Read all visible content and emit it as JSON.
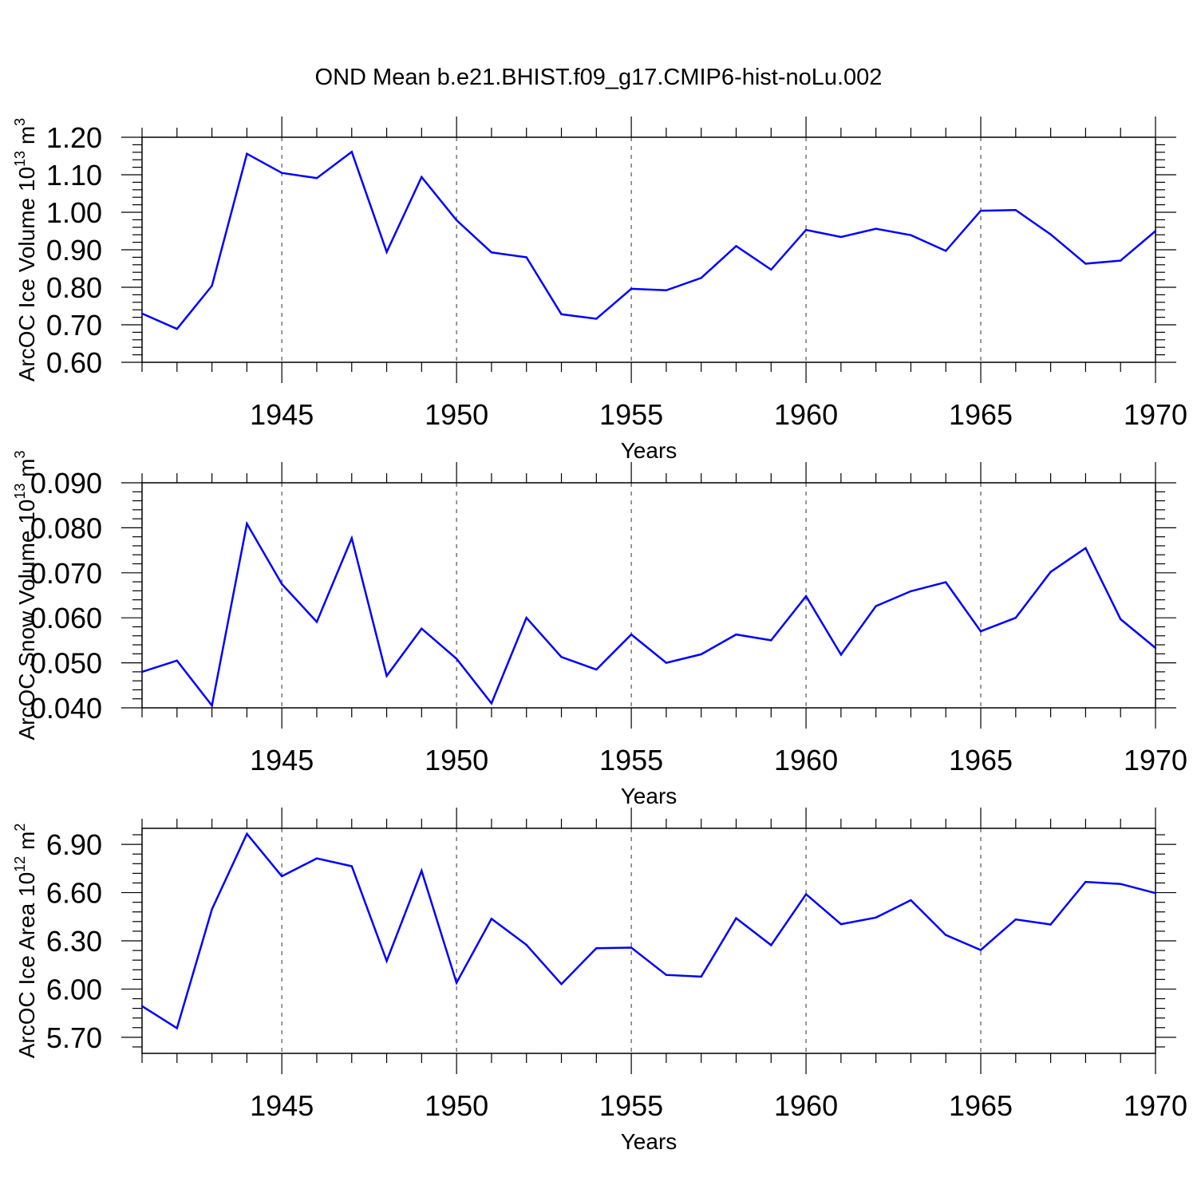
{
  "title": "OND Mean b.e21.BHIST.f09_g17.CMIP6-hist-noLu.002",
  "colors": {
    "series": "#0000ff",
    "axis": "#000000",
    "grid": "#555555"
  },
  "chart_data": [
    {
      "type": "line",
      "xlabel": "Years",
      "ylabel": {
        "text": "ArcOC Ice Volume 10",
        "sup_exp": "13",
        "unit": " m",
        "sup_unit": "3"
      },
      "xlim": [
        1941,
        1970
      ],
      "ylim": [
        0.6,
        1.2
      ],
      "x_ticks": [
        "1945",
        "1950",
        "1955",
        "1960",
        "1965",
        "1970"
      ],
      "y_ticks": [
        "0.60",
        "0.70",
        "0.80",
        "0.90",
        "1.00",
        "1.10",
        "1.20"
      ],
      "grid": "vertical dashed at major x ticks",
      "x": [
        1941,
        1942,
        1943,
        1944,
        1945,
        1946,
        1947,
        1948,
        1949,
        1950,
        1951,
        1952,
        1953,
        1954,
        1955,
        1956,
        1957,
        1958,
        1959,
        1960,
        1961,
        1962,
        1963,
        1964,
        1965,
        1966,
        1967,
        1968,
        1969,
        1970
      ],
      "values": [
        0.73,
        0.689,
        0.804,
        1.156,
        1.105,
        1.091,
        1.161,
        0.894,
        1.094,
        0.979,
        0.893,
        0.88,
        0.728,
        0.716,
        0.796,
        0.792,
        0.825,
        0.91,
        0.847,
        0.953,
        0.934,
        0.956,
        0.939,
        0.897,
        1.004,
        1.006,
        0.941,
        0.863,
        0.871,
        0.95
      ]
    },
    {
      "type": "line",
      "xlabel": "Years",
      "ylabel": {
        "text": "ArcOC Snow Volume 10",
        "sup_exp": "13",
        "unit": " m",
        "sup_unit": "3"
      },
      "xlim": [
        1941,
        1970
      ],
      "ylim": [
        0.04,
        0.09
      ],
      "x_ticks": [
        "1945",
        "1950",
        "1955",
        "1960",
        "1965",
        "1970"
      ],
      "y_ticks": [
        "0.040",
        "0.050",
        "0.060",
        "0.070",
        "0.080",
        "0.090"
      ],
      "grid": "vertical dashed at major x ticks",
      "x": [
        1941,
        1942,
        1943,
        1944,
        1945,
        1946,
        1947,
        1948,
        1949,
        1950,
        1951,
        1952,
        1953,
        1954,
        1955,
        1956,
        1957,
        1958,
        1959,
        1960,
        1961,
        1962,
        1963,
        1964,
        1965,
        1966,
        1967,
        1968,
        1969,
        1970
      ],
      "values": [
        0.048,
        0.0505,
        0.0405,
        0.0809,
        0.0675,
        0.0591,
        0.0777,
        0.0471,
        0.0576,
        0.0509,
        0.041,
        0.06,
        0.0513,
        0.0485,
        0.0563,
        0.05,
        0.0519,
        0.0563,
        0.055,
        0.0648,
        0.0518,
        0.0626,
        0.0659,
        0.0679,
        0.057,
        0.06,
        0.0702,
        0.0755,
        0.0597,
        0.0533
      ]
    },
    {
      "type": "line",
      "xlabel": "Years",
      "ylabel": {
        "text": "ArcOC Ice Area 10",
        "sup_exp": "12",
        "unit": " m",
        "sup_unit": "2"
      },
      "xlim": [
        1941,
        1970
      ],
      "ylim": [
        5.6,
        7.0
      ],
      "x_ticks": [
        "1945",
        "1950",
        "1955",
        "1960",
        "1965",
        "1970"
      ],
      "y_ticks": [
        "5.70",
        "6.00",
        "6.30",
        "6.60",
        "6.90"
      ],
      "grid": "vertical dashed at major x ticks",
      "x": [
        1941,
        1942,
        1943,
        1944,
        1945,
        1946,
        1947,
        1948,
        1949,
        1950,
        1951,
        1952,
        1953,
        1954,
        1955,
        1956,
        1957,
        1958,
        1959,
        1960,
        1961,
        1962,
        1963,
        1964,
        1965,
        1966,
        1967,
        1968,
        1969,
        1970
      ],
      "values": [
        5.894,
        5.757,
        6.496,
        6.966,
        6.702,
        6.813,
        6.764,
        6.175,
        6.736,
        6.039,
        6.437,
        6.275,
        6.031,
        6.254,
        6.258,
        6.088,
        6.077,
        6.441,
        6.273,
        6.59,
        6.404,
        6.445,
        6.553,
        6.336,
        6.243,
        6.433,
        6.402,
        6.667,
        6.654,
        6.597
      ]
    }
  ]
}
